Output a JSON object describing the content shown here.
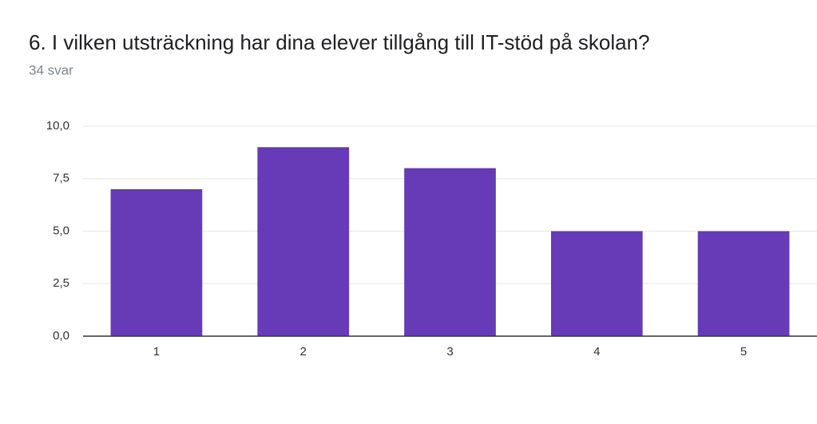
{
  "chart_data": {
    "type": "bar",
    "title": "6. I vilken utsträckning har dina elever tillgång till IT-stöd på skolan?",
    "subtitle": "34 svar",
    "categories": [
      "1",
      "2",
      "3",
      "4",
      "5"
    ],
    "values": [
      7,
      9,
      8,
      5,
      5
    ],
    "color": "#673ab7",
    "ylim": [
      0,
      10
    ],
    "yticks": [
      {
        "value": 0,
        "label": "0,0"
      },
      {
        "value": 2.5,
        "label": "2,5"
      },
      {
        "value": 5,
        "label": "5,0"
      },
      {
        "value": 7.5,
        "label": "7,5"
      },
      {
        "value": 10,
        "label": "10,0"
      }
    ],
    "grid": true
  }
}
